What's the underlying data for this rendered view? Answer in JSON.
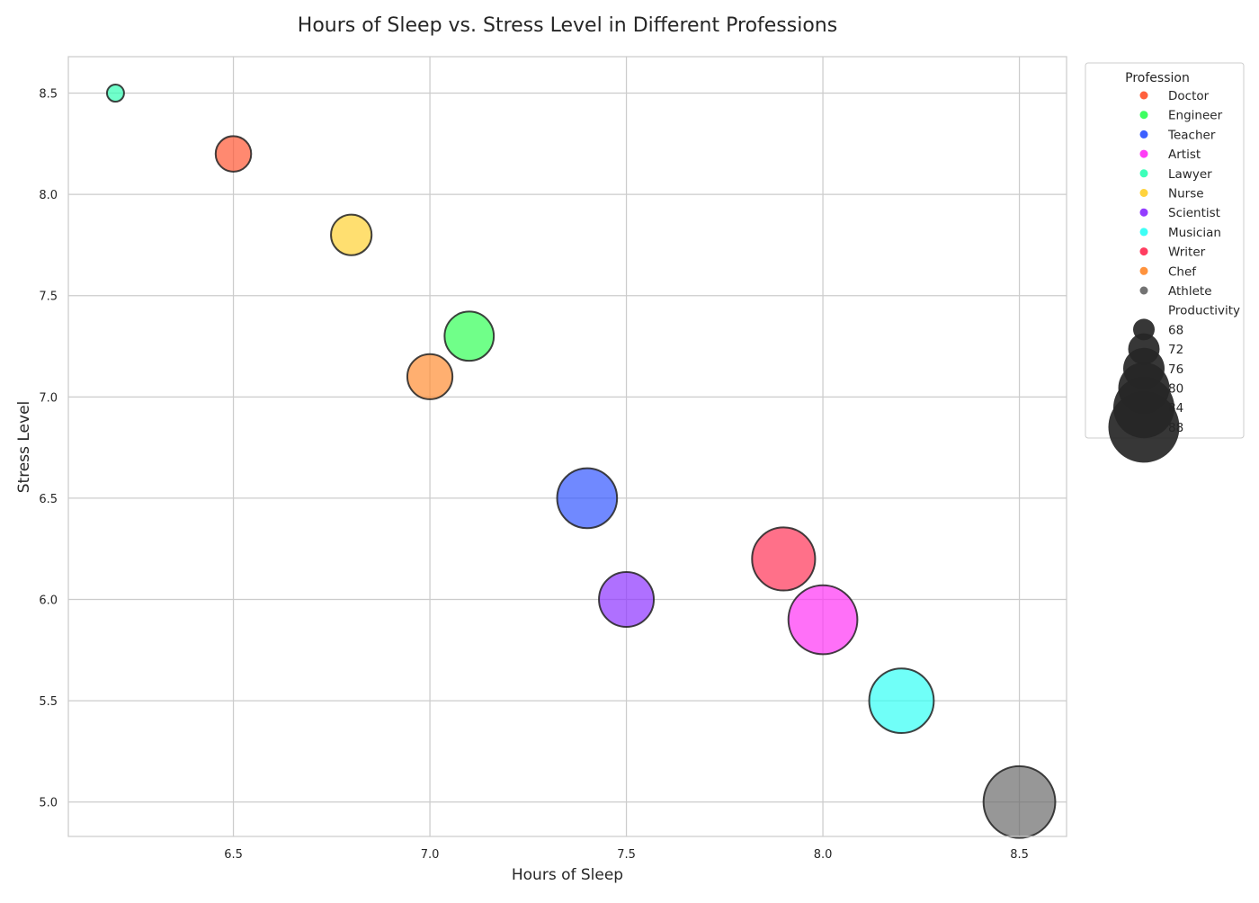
{
  "chart_data": {
    "type": "scatter",
    "title": "Hours of Sleep vs. Stress Level in Different Professions",
    "xlabel": "Hours of Sleep",
    "ylabel": "Stress Level",
    "xlim": [
      6.08,
      8.62
    ],
    "ylim": [
      4.83,
      8.68
    ],
    "xticks": [
      6.5,
      7.0,
      7.5,
      8.0,
      8.5
    ],
    "yticks": [
      5.0,
      5.5,
      6.0,
      6.5,
      7.0,
      7.5,
      8.0,
      8.5
    ],
    "grid": true,
    "legend_position": "outside-right",
    "legend_title_color": "Profession",
    "legend_title_size": "Productivity",
    "size_legend_values": [
      68,
      72,
      76,
      80,
      84,
      88
    ],
    "points": [
      {
        "label": "Doctor",
        "x": 6.5,
        "y": 8.2,
        "productivity": 70,
        "color": "#FF5733"
      },
      {
        "label": "Engineer",
        "x": 7.1,
        "y": 7.3,
        "productivity": 76,
        "color": "#33FF57"
      },
      {
        "label": "Teacher",
        "x": 7.4,
        "y": 6.5,
        "productivity": 82,
        "color": "#3357FF"
      },
      {
        "label": "Artist",
        "x": 8.0,
        "y": 5.9,
        "productivity": 88,
        "color": "#FF33F5"
      },
      {
        "label": "Lawyer",
        "x": 6.2,
        "y": 8.5,
        "productivity": 65,
        "color": "#33FFB5"
      },
      {
        "label": "Nurse",
        "x": 6.8,
        "y": 7.8,
        "productivity": 72,
        "color": "#FFD133"
      },
      {
        "label": "Scientist",
        "x": 7.5,
        "y": 6.0,
        "productivity": 79,
        "color": "#8D33FF"
      },
      {
        "label": "Musician",
        "x": 8.2,
        "y": 5.5,
        "productivity": 85,
        "color": "#33FFF5"
      },
      {
        "label": "Writer",
        "x": 7.9,
        "y": 6.2,
        "productivity": 84,
        "color": "#FF3357"
      },
      {
        "label": "Chef",
        "x": 7.0,
        "y": 7.1,
        "productivity": 74,
        "color": "#FF8D33"
      },
      {
        "label": "Athlete",
        "x": 8.5,
        "y": 5.0,
        "productivity": 90,
        "color": "#6B6B6B"
      }
    ]
  }
}
